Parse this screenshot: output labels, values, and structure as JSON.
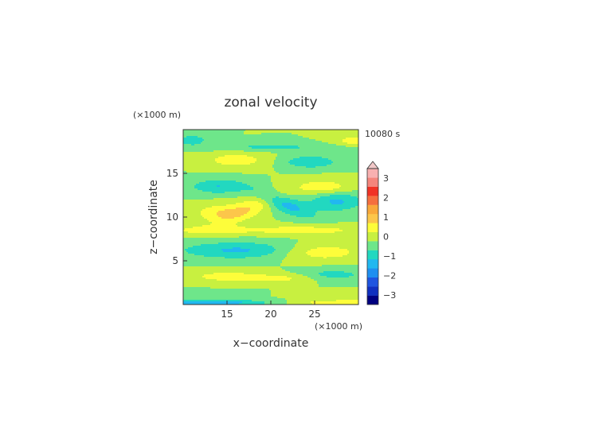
{
  "chart_data": {
    "type": "heatmap",
    "title": "zonal velocity",
    "time_label": "10080 s",
    "xlabel": "x−coordinate",
    "ylabel": "z−coordinate",
    "x_unit": "(×1000 m)",
    "y_unit": "(×1000 m)",
    "xlim": [
      10,
      30
    ],
    "ylim": [
      0,
      20
    ],
    "x_ticks": [
      15,
      20,
      25
    ],
    "y_ticks": [
      5,
      10,
      15
    ],
    "colorbar": {
      "levels": [
        -3.5,
        -3,
        -2.5,
        -2,
        -1.5,
        -1,
        -0.5,
        0,
        0.5,
        1,
        1.5,
        2,
        2.5,
        3,
        3.5
      ],
      "colors": [
        "#000080",
        "#1030c0",
        "#1f55e0",
        "#1f8ff0",
        "#21b8f0",
        "#22d8c0",
        "#6ee68a",
        "#c8f040",
        "#fdfd3a",
        "#fcc64a",
        "#f9a83a",
        "#f56f3e",
        "#f03225",
        "#f4857c",
        "#f8b0b0"
      ],
      "tick_labels": [
        "3",
        "2",
        "1",
        "0",
        "−1",
        "−2",
        "−3"
      ],
      "tick_values": [
        3,
        2,
        1,
        0,
        -1,
        -2,
        -3
      ],
      "extend": "max"
    },
    "features": [
      {
        "x": 21.5,
        "y": 11.5,
        "sx": 2.6,
        "sy": 0.7,
        "rot": -22,
        "value": -1.2
      },
      {
        "x": 27.5,
        "y": 11.8,
        "sx": 2.2,
        "sy": 0.8,
        "rot": 0,
        "value": -1.1
      },
      {
        "x": 17.5,
        "y": 11.0,
        "sx": 2.8,
        "sy": 0.8,
        "rot": 22,
        "value": 0.9
      },
      {
        "x": 14.0,
        "y": 10.5,
        "sx": 2.0,
        "sy": 0.7,
        "rot": 0,
        "value": 0.8
      },
      {
        "x": 13.0,
        "y": 8.5,
        "sx": 3.5,
        "sy": 0.4,
        "rot": 0,
        "value": 0.7
      },
      {
        "x": 24.0,
        "y": 8.5,
        "sx": 4.5,
        "sy": 0.4,
        "rot": 0,
        "value": 0.8
      },
      {
        "x": 16.5,
        "y": 6.2,
        "sx": 5.0,
        "sy": 0.7,
        "rot": 0,
        "value": -1.1
      },
      {
        "x": 25.5,
        "y": 6.0,
        "sx": 3.5,
        "sy": 0.7,
        "rot": 0,
        "value": 0.9
      },
      {
        "x": 16.0,
        "y": 16.5,
        "sx": 2.5,
        "sy": 0.6,
        "rot": 0,
        "value": 0.8
      },
      {
        "x": 24.5,
        "y": 16.3,
        "sx": 2.2,
        "sy": 0.5,
        "rot": 0,
        "value": -1.0
      },
      {
        "x": 14.0,
        "y": 13.5,
        "sx": 2.3,
        "sy": 0.6,
        "rot": 0,
        "value": -1.0
      },
      {
        "x": 26.0,
        "y": 13.4,
        "sx": 2.3,
        "sy": 0.6,
        "rot": 0,
        "value": 0.9
      },
      {
        "x": 15.0,
        "y": 3.2,
        "sx": 3.5,
        "sy": 0.5,
        "rot": 0,
        "value": 0.7
      },
      {
        "x": 27.0,
        "y": 3.4,
        "sx": 3.0,
        "sy": 0.5,
        "rot": 0,
        "value": -0.7
      },
      {
        "x": 22.0,
        "y": 3.0,
        "sx": 2.5,
        "sy": 0.4,
        "rot": 0,
        "value": 0.6
      },
      {
        "x": 11.0,
        "y": 18.8,
        "sx": 1.2,
        "sy": 0.4,
        "rot": 0,
        "value": -0.9
      },
      {
        "x": 29.5,
        "y": 18.7,
        "sx": 1.5,
        "sy": 0.4,
        "rot": 0,
        "value": 0.8
      },
      {
        "x": 20.0,
        "y": 18.0,
        "sx": 6.0,
        "sy": 0.3,
        "rot": 0,
        "value": -0.6
      },
      {
        "x": 14.0,
        "y": 0.2,
        "sx": 8.0,
        "sy": 0.25,
        "rot": 0,
        "value": -1.8
      },
      {
        "x": 26.0,
        "y": 0.2,
        "sx": 8.0,
        "sy": 0.25,
        "rot": 0,
        "value": 1.3
      },
      {
        "x": 16.0,
        "y": 1.3,
        "sx": 6.0,
        "sy": 0.25,
        "rot": 0,
        "value": -0.6
      },
      {
        "x": 24.0,
        "y": 1.3,
        "sx": 6.0,
        "sy": 0.25,
        "rot": 0,
        "value": 0.6
      }
    ]
  }
}
